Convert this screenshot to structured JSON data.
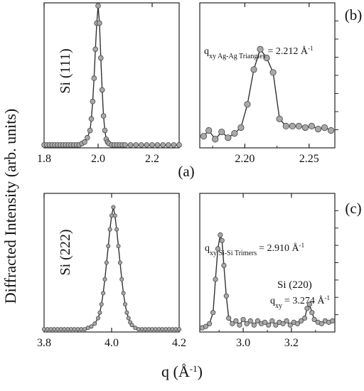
{
  "figure": {
    "ylabel": "Diffracted Intensity (arb. units)",
    "xlabel": "q (Å",
    "xlabel_sup": "-1",
    "xlabel_end": ")"
  },
  "chart_data": [
    {
      "panel": "a-top",
      "type": "line",
      "panel_label": "(a)",
      "annotation": "Si (111)",
      "xlim": [
        1.8,
        2.3
      ],
      "ylim": [
        0,
        1.0
      ],
      "xticks": [
        "1.8",
        "2.0",
        "2.2"
      ],
      "xtick_values": [
        1.8,
        2.0,
        2.2
      ],
      "x": [
        1.8,
        1.81,
        1.82,
        1.83,
        1.84,
        1.85,
        1.86,
        1.87,
        1.88,
        1.89,
        1.9,
        1.91,
        1.92,
        1.93,
        1.94,
        1.95,
        1.96,
        1.97,
        1.975,
        1.98,
        1.985,
        1.99,
        1.995,
        2.0,
        2.005,
        2.01,
        2.015,
        2.02,
        2.025,
        2.03,
        2.035,
        2.04,
        2.05,
        2.06,
        2.07,
        2.08,
        2.09,
        2.1,
        2.12,
        2.14,
        2.16,
        2.18,
        2.2,
        2.22,
        2.24,
        2.26,
        2.28,
        2.3
      ],
      "y": [
        0.02,
        0.02,
        0.02,
        0.02,
        0.02,
        0.02,
        0.02,
        0.02,
        0.02,
        0.02,
        0.02,
        0.02,
        0.02,
        0.02,
        0.03,
        0.04,
        0.07,
        0.12,
        0.2,
        0.32,
        0.48,
        0.68,
        0.86,
        0.98,
        0.86,
        0.62,
        0.4,
        0.22,
        0.12,
        0.06,
        0.04,
        0.03,
        0.02,
        0.02,
        0.02,
        0.02,
        0.02,
        0.02,
        0.02,
        0.02,
        0.02,
        0.02,
        0.02,
        0.02,
        0.02,
        0.02,
        0.02,
        0.02
      ]
    },
    {
      "panel": "b",
      "type": "line",
      "panel_label": "(b)",
      "annotation_main": "q",
      "annotation_sub": "xy Ag-Ag Triangles",
      "annotation_value": "= 2.212 Å",
      "annotation_sup": "-1",
      "xlim": [
        2.165,
        2.27
      ],
      "ylim": [
        0,
        1.0
      ],
      "xticks": [
        "2.20",
        "2.25"
      ],
      "xtick_values": [
        2.2,
        2.25
      ],
      "x": [
        2.168,
        2.172,
        2.177,
        2.182,
        2.187,
        2.192,
        2.197,
        2.202,
        2.207,
        2.212,
        2.217,
        2.222,
        2.227,
        2.232,
        2.237,
        2.242,
        2.247,
        2.252,
        2.257,
        2.262,
        2.267
      ],
      "y": [
        0.08,
        0.12,
        0.06,
        0.11,
        0.07,
        0.1,
        0.14,
        0.3,
        0.54,
        0.68,
        0.62,
        0.52,
        0.2,
        0.15,
        0.15,
        0.15,
        0.14,
        0.15,
        0.13,
        0.14,
        0.12
      ]
    },
    {
      "panel": "a-bottom",
      "type": "line",
      "annotation": "Si (222)",
      "xlim": [
        3.8,
        4.2
      ],
      "ylim": [
        0,
        1.0
      ],
      "xticks": [
        "3.8",
        "4.0",
        "4.2"
      ],
      "xtick_values": [
        3.8,
        4.0,
        4.2
      ],
      "x": [
        3.8,
        3.81,
        3.82,
        3.83,
        3.84,
        3.85,
        3.86,
        3.87,
        3.88,
        3.89,
        3.9,
        3.91,
        3.92,
        3.93,
        3.94,
        3.95,
        3.96,
        3.965,
        3.97,
        3.975,
        3.98,
        3.985,
        3.99,
        3.995,
        4.0,
        4.005,
        4.01,
        4.015,
        4.02,
        4.025,
        4.03,
        4.035,
        4.04,
        4.045,
        4.05,
        4.055,
        4.06,
        4.07,
        4.08,
        4.09,
        4.1,
        4.11,
        4.12,
        4.13,
        4.14,
        4.15,
        4.16,
        4.17,
        4.18,
        4.19,
        4.2
      ],
      "y": [
        0.02,
        0.02,
        0.02,
        0.02,
        0.02,
        0.02,
        0.02,
        0.02,
        0.02,
        0.02,
        0.02,
        0.02,
        0.02,
        0.03,
        0.04,
        0.06,
        0.1,
        0.14,
        0.2,
        0.28,
        0.38,
        0.5,
        0.62,
        0.74,
        0.84,
        0.9,
        0.84,
        0.74,
        0.62,
        0.5,
        0.38,
        0.28,
        0.2,
        0.14,
        0.1,
        0.07,
        0.05,
        0.03,
        0.02,
        0.02,
        0.02,
        0.02,
        0.02,
        0.02,
        0.02,
        0.02,
        0.02,
        0.02,
        0.02,
        0.02,
        0.02
      ]
    },
    {
      "panel": "c",
      "type": "line",
      "panel_label": "(c)",
      "annotation1_main": "q",
      "annotation1_sub": "xy Si-Si Trimers",
      "annotation1_value": "= 2.910 Å",
      "annotation1_sup": "-1",
      "annotation2_line1": "Si (220)",
      "annotation2_main": "q",
      "annotation2_sub": "xy",
      "annotation2_value": "= 3.274 Å",
      "annotation2_sup": "-1",
      "xlim": [
        2.82,
        3.38
      ],
      "ylim": [
        0,
        1.0
      ],
      "xticks": [
        "3.0",
        "3.2"
      ],
      "xtick_values": [
        3.0,
        3.2
      ],
      "x": [
        2.83,
        2.845,
        2.86,
        2.875,
        2.885,
        2.895,
        2.905,
        2.912,
        2.92,
        2.93,
        2.94,
        2.955,
        2.97,
        2.985,
        3.0,
        3.015,
        3.03,
        3.045,
        3.06,
        3.075,
        3.09,
        3.105,
        3.12,
        3.135,
        3.15,
        3.165,
        3.18,
        3.195,
        3.21,
        3.225,
        3.24,
        3.255,
        3.265,
        3.275,
        3.285,
        3.295,
        3.31,
        3.325,
        3.34,
        3.355,
        3.37
      ],
      "y": [
        0.03,
        0.04,
        0.06,
        0.14,
        0.38,
        0.6,
        0.7,
        0.66,
        0.48,
        0.26,
        0.1,
        0.06,
        0.08,
        0.05,
        0.09,
        0.06,
        0.08,
        0.05,
        0.08,
        0.06,
        0.07,
        0.05,
        0.08,
        0.05,
        0.07,
        0.06,
        0.08,
        0.05,
        0.07,
        0.06,
        0.08,
        0.1,
        0.17,
        0.2,
        0.14,
        0.09,
        0.07,
        0.06,
        0.08,
        0.07,
        0.08
      ]
    }
  ]
}
